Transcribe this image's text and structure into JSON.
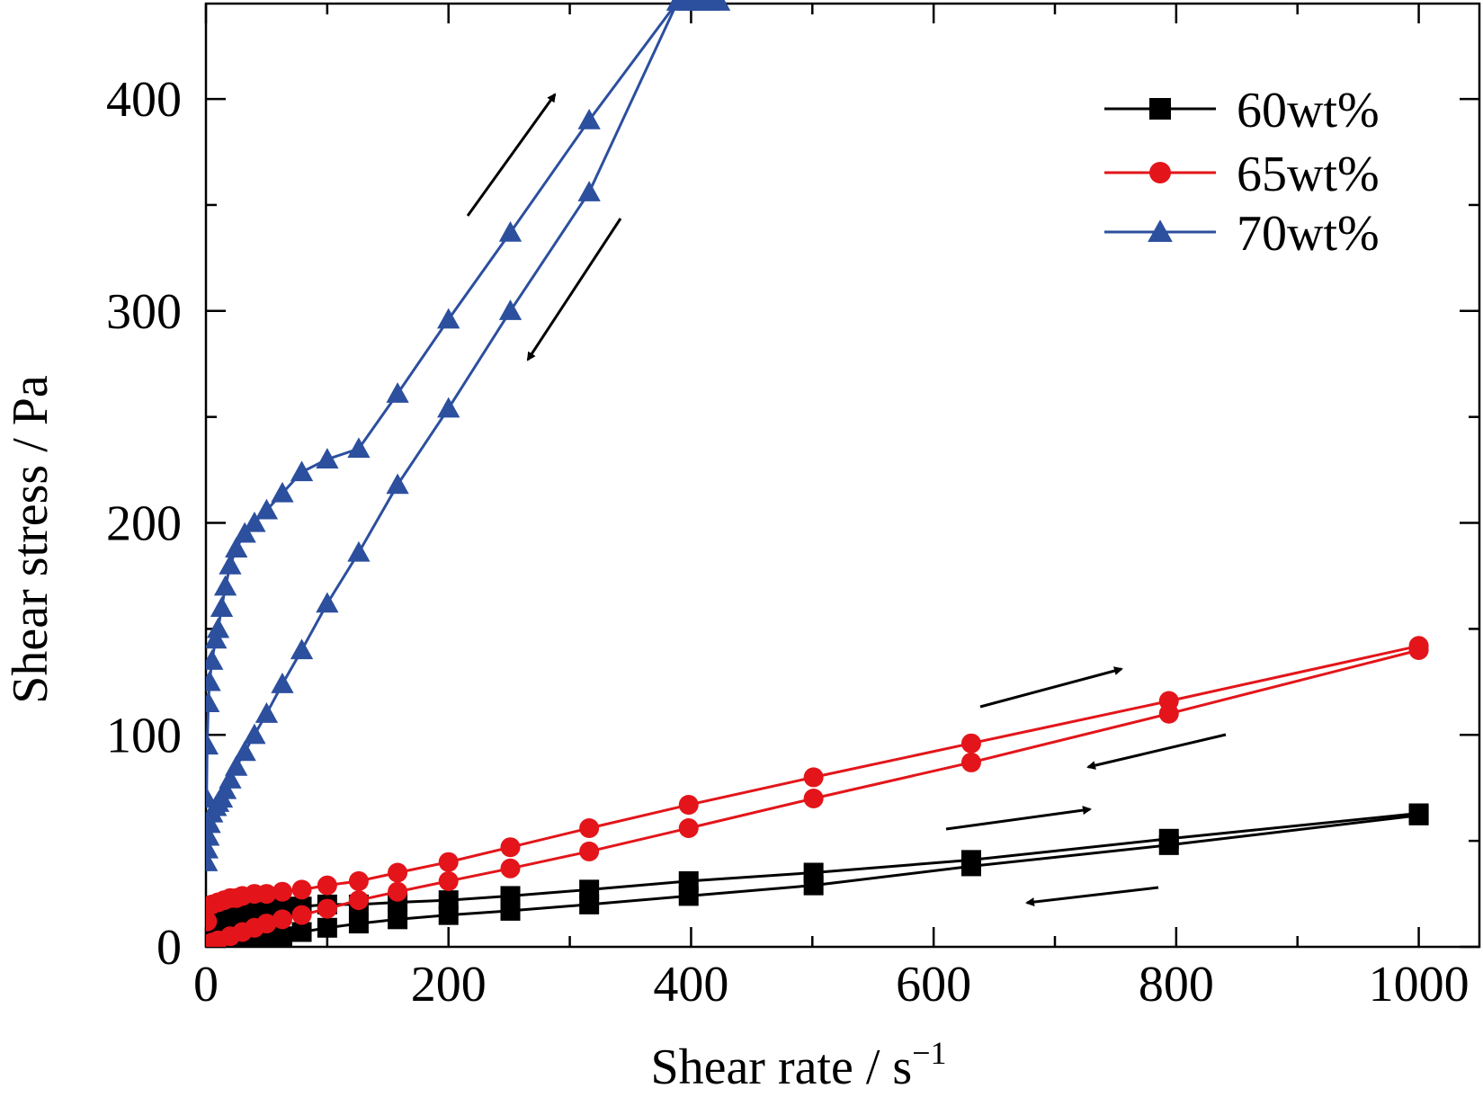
{
  "chart_data": {
    "type": "line",
    "title": "",
    "xlabel": "Shear rate / s",
    "xlabel_superscript": "−1",
    "ylabel": "Shear stress / Pa",
    "xlim": [
      0,
      1050
    ],
    "ylim": [
      0,
      445
    ],
    "x_ticks": [
      0,
      200,
      400,
      600,
      800,
      1000
    ],
    "x_minor_ticks": [
      100,
      300,
      500,
      700,
      900
    ],
    "y_ticks": [
      0,
      100,
      200,
      300,
      400
    ],
    "y_minor_ticks": [
      50,
      150,
      250,
      350
    ],
    "x_tick_labels": [
      "0",
      "200",
      "400",
      "600",
      "800",
      "1000"
    ],
    "y_tick_labels": [
      "0",
      "100",
      "200",
      "300",
      "400"
    ],
    "grid": false,
    "legend_position": "top-right",
    "series": [
      {
        "name": "60wt%",
        "color": "#000000",
        "marker": "square",
        "up": {
          "x": [
            1,
            5,
            10,
            15,
            20,
            25,
            30,
            40,
            50,
            63,
            79,
            100,
            126,
            158,
            200,
            251,
            316,
            398,
            501,
            631,
            794,
            1000
          ],
          "y": [
            3,
            8,
            11,
            13,
            14,
            15,
            16,
            17,
            18,
            19,
            19,
            20,
            20,
            21,
            22,
            24,
            27,
            31,
            35,
            41,
            51,
            63
          ]
        },
        "down": {
          "x": [
            1000,
            794,
            631,
            501,
            398,
            316,
            251,
            200,
            158,
            126,
            100,
            79,
            63,
            50,
            40,
            30,
            20,
            10,
            5,
            1
          ],
          "y": [
            62,
            48,
            38,
            29,
            24,
            20,
            17,
            15,
            13,
            11,
            9,
            7,
            5,
            4,
            3,
            2,
            1,
            1,
            0,
            0
          ]
        }
      },
      {
        "name": "65wt%",
        "color": "#e3151a",
        "marker": "circle",
        "up": {
          "x": [
            1,
            5,
            10,
            15,
            20,
            25,
            30,
            40,
            50,
            63,
            79,
            100,
            126,
            158,
            200,
            251,
            316,
            398,
            501,
            631,
            794,
            1000
          ],
          "y": [
            12,
            20,
            21,
            22,
            23,
            23,
            24,
            25,
            25,
            26,
            27,
            29,
            31,
            35,
            40,
            47,
            56,
            67,
            80,
            96,
            116,
            142
          ]
        },
        "down": {
          "x": [
            1000,
            794,
            631,
            501,
            398,
            316,
            251,
            200,
            158,
            126,
            100,
            79,
            63,
            50,
            40,
            30,
            20,
            10,
            5,
            1
          ],
          "y": [
            140,
            110,
            87,
            70,
            56,
            45,
            37,
            31,
            26,
            22,
            18,
            15,
            13,
            11,
            9,
            7,
            5,
            3,
            2,
            1
          ]
        }
      },
      {
        "name": "70wt%",
        "color": "#2c4f9e",
        "marker": "triangle",
        "up": {
          "x": [
            0.5,
            1,
            2,
            3,
            5,
            8,
            10,
            13,
            16,
            20,
            25,
            32,
            40,
            50,
            63,
            79,
            100,
            126,
            158,
            200,
            251,
            316,
            389,
            398,
            407,
            415,
            423
          ],
          "y": [
            70,
            95,
            115,
            125,
            135,
            145,
            150,
            160,
            170,
            180,
            188,
            195,
            200,
            206,
            214,
            224,
            230,
            235,
            261,
            296,
            337,
            390,
            446,
            446,
            446,
            446,
            446
          ]
        },
        "down": {
          "x": [
            423,
            415,
            407,
            398,
            389,
            316,
            251,
            200,
            158,
            126,
            100,
            79,
            63,
            50,
            40,
            32,
            25,
            20,
            16,
            13,
            10,
            8,
            5,
            3,
            2,
            1,
            0.5
          ],
          "y": [
            446,
            446,
            446,
            446,
            446,
            356,
            300,
            254,
            218,
            186,
            162,
            140,
            124,
            110,
            100,
            92,
            85,
            79,
            74,
            70,
            68,
            66,
            63,
            58,
            52,
            46,
            40
          ]
        }
      }
    ],
    "annotations": [
      {
        "type": "arrow",
        "series": "70wt%",
        "direction": "up"
      },
      {
        "type": "arrow",
        "series": "70wt%",
        "direction": "down"
      },
      {
        "type": "arrow",
        "series": "65wt%",
        "direction": "up"
      },
      {
        "type": "arrow",
        "series": "65wt%",
        "direction": "down"
      },
      {
        "type": "arrow",
        "series": "60wt%",
        "direction": "up"
      },
      {
        "type": "arrow",
        "series": "60wt%",
        "direction": "down"
      }
    ]
  }
}
